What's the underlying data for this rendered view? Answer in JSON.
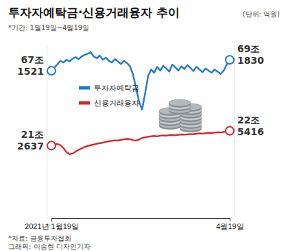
{
  "chart_data": {
    "type": "line",
    "title": "투자자예탁금·신용거래융자 추이",
    "subtitle": "(단위: 억원)",
    "annotations": [
      "*기간: 1월19일~4월19일",
      "*자료: 금융투자협회",
      "그래픽: 이승현 디자인기자"
    ],
    "categories": [
      "2021년 1월19일",
      null,
      null,
      null,
      null,
      null,
      null,
      null,
      null,
      null,
      null,
      null,
      null,
      null,
      null,
      null,
      null,
      null,
      null,
      null,
      null,
      null,
      null,
      null,
      null,
      null,
      null,
      null,
      null,
      null,
      null,
      null,
      null,
      null,
      null,
      null,
      null,
      null,
      null,
      null,
      null,
      null,
      null,
      null,
      null,
      null,
      null,
      null,
      null,
      null,
      null,
      null,
      null,
      null,
      null,
      null,
      null,
      null,
      null,
      "4월19일"
    ],
    "ylim": [
      400000,
      720000
    ],
    "y2lim": [
      150000,
      300000
    ],
    "tick_labels": "x",
    "legend": "left",
    "series": [
      {
        "name": "투자자예탁금",
        "color": "#1f78d1",
        "marker": "circle",
        "values": [
          671521,
          678000,
          684000,
          690000,
          687000,
          692000,
          689000,
          694000,
          697000,
          693000,
          698000,
          701000,
          703000,
          706000,
          698000,
          695000,
          700000,
          692000,
          696000,
          690000,
          687000,
          693000,
          689000,
          684000,
          690000,
          686000,
          680000,
          665000,
          640000,
          615000,
          600000,
          630000,
          662000,
          674000,
          668000,
          679000,
          672000,
          681000,
          676000,
          670000,
          683000,
          678000,
          672000,
          680000,
          675000,
          682000,
          677000,
          671000,
          679000,
          674000,
          669000,
          676000,
          672000,
          668000,
          674000,
          670000,
          666000,
          672000,
          683000,
          691830
        ],
        "value_labels": [
          "67조 1521",
          null,
          null,
          null,
          null,
          null,
          null,
          null,
          null,
          null,
          null,
          null,
          null,
          null,
          null,
          null,
          null,
          null,
          null,
          null,
          null,
          null,
          null,
          null,
          null,
          null,
          null,
          null,
          null,
          null,
          null,
          null,
          null,
          null,
          null,
          null,
          null,
          null,
          null,
          null,
          null,
          null,
          null,
          null,
          null,
          null,
          null,
          null,
          null,
          null,
          null,
          null,
          null,
          null,
          null,
          null,
          null,
          null,
          null,
          "69조 1830"
        ]
      },
      {
        "name": "신용거래융자",
        "color": "#d8262c",
        "marker": "circle",
        "axis": "y2",
        "values": [
          212637,
          213500,
          214200,
          213000,
          210500,
          207000,
          205200,
          205800,
          207500,
          209000,
          210200,
          211500,
          212300,
          213000,
          213600,
          214300,
          214800,
          215200,
          215900,
          216400,
          216800,
          217200,
          217000,
          217600,
          218100,
          218500,
          218200,
          217400,
          216900,
          218000,
          219200,
          219800,
          220300,
          220800,
          221000,
          220600,
          221200,
          221500,
          221300,
          221700,
          221900,
          221600,
          222000,
          222300,
          222100,
          222400,
          222700,
          222500,
          222900,
          223200,
          223000,
          223400,
          223700,
          223500,
          223900,
          224200,
          224000,
          224500,
          224900,
          225416
        ],
        "value_labels": [
          "21조 2637",
          null,
          null,
          null,
          null,
          null,
          null,
          null,
          null,
          null,
          null,
          null,
          null,
          null,
          null,
          null,
          null,
          null,
          null,
          null,
          null,
          null,
          null,
          null,
          null,
          null,
          null,
          null,
          null,
          null,
          null,
          null,
          null,
          null,
          null,
          null,
          null,
          null,
          null,
          null,
          null,
          null,
          null,
          null,
          null,
          null,
          null,
          null,
          null,
          null,
          null,
          null,
          null,
          null,
          null,
          null,
          null,
          null,
          null,
          "22조 5416"
        ]
      }
    ]
  }
}
